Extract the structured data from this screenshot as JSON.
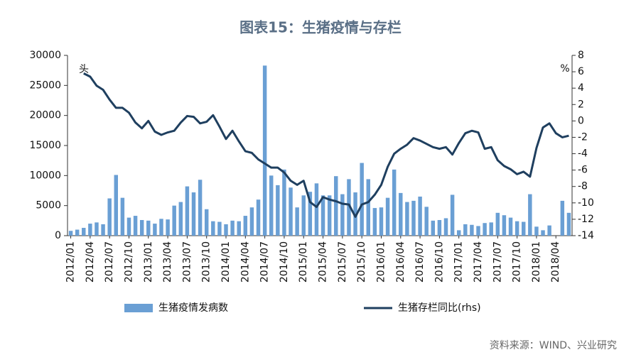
{
  "chart_data": {
    "type": "bar_line",
    "title": "图表15：生猪疫情与存栏",
    "y_unit": "头",
    "y2_unit": "%",
    "source": "资料来源：WIND、兴业研究",
    "categories": [
      "2012/01",
      null,
      null,
      "2012/04",
      null,
      null,
      "2012/07",
      null,
      null,
      "2012/10",
      null,
      null,
      "2013/01",
      null,
      null,
      "2013/04",
      null,
      null,
      "2013/07",
      null,
      null,
      "2013/10",
      null,
      null,
      "2014/01",
      null,
      null,
      "2014/04",
      null,
      null,
      "2014/07",
      null,
      null,
      "2014/10",
      null,
      null,
      "2015/01",
      null,
      null,
      "2015/04",
      null,
      null,
      "2015/07",
      null,
      null,
      "2015/10",
      null,
      null,
      "2016/01",
      null,
      null,
      "2016/04",
      null,
      null,
      "2016/07",
      null,
      null,
      "2016/10",
      null,
      null,
      "2017/01",
      null,
      null,
      "2017/04",
      null,
      null,
      "2017/07",
      null,
      null,
      "2017/10",
      null,
      null,
      "2018/01",
      null,
      null,
      "2018/04",
      null,
      null
    ],
    "series": [
      {
        "name": "生猪疫情发病数",
        "type": "bar",
        "color": "#6a9fd4",
        "values": [
          800,
          1000,
          1300,
          2000,
          2200,
          1900,
          6200,
          10100,
          6300,
          3000,
          3300,
          2600,
          2500,
          2000,
          2800,
          2700,
          5000,
          5600,
          8200,
          7200,
          9300,
          4400,
          2400,
          2300,
          1900,
          2500,
          2400,
          3300,
          4700,
          6000,
          28300,
          10000,
          8400,
          11000,
          8000,
          4700,
          6700,
          7300,
          8700,
          6700,
          6700,
          9900,
          6900,
          9400,
          7200,
          12100,
          9400,
          4600,
          4700,
          6300,
          11000,
          7100,
          5600,
          5800,
          6500,
          4800,
          2500,
          2600,
          2900,
          6800,
          900,
          1900,
          1800,
          1600,
          2100,
          2200,
          3800,
          3400,
          3000,
          2400,
          2300,
          6900,
          1500,
          900,
          1700,
          0,
          5800,
          3800
        ]
      },
      {
        "name": "生猪存栏同比(rhs)",
        "type": "line",
        "axis": "y2",
        "color": "#1f3f5f",
        "values": [
          null,
          null,
          5.8,
          5.4,
          4.3,
          3.8,
          2.6,
          1.6,
          1.6,
          1.0,
          -0.2,
          -0.9,
          0.0,
          -1.3,
          -1.7,
          -1.4,
          -1.2,
          -0.2,
          0.6,
          0.5,
          -0.3,
          -0.1,
          0.7,
          -0.7,
          -2.2,
          -1.2,
          -2.5,
          -3.7,
          -3.9,
          -4.7,
          -5.2,
          -5.7,
          -5.7,
          -6.3,
          -7.3,
          -7.8,
          -7.3,
          -9.9,
          -10.5,
          -9.3,
          -9.6,
          -9.8,
          -10.1,
          -10.2,
          -11.7,
          -10.2,
          -9.9,
          -9.0,
          -7.8,
          -5.6,
          -4.0,
          -3.4,
          -2.9,
          -2.1,
          -2.4,
          -2.8,
          -3.2,
          -3.4,
          -3.2,
          -4.1,
          -2.7,
          -1.5,
          -1.2,
          -1.4,
          -3.4,
          -3.2,
          -4.8,
          -5.5,
          -5.9,
          -6.5,
          -6.2,
          -6.8,
          -3.3,
          -0.8,
          -0.3,
          -1.5,
          -2.0,
          -1.8
        ]
      }
    ],
    "ylim": [
      0,
      30000
    ],
    "yticks": [
      0,
      5000,
      10000,
      15000,
      20000,
      25000,
      30000
    ],
    "y2lim": [
      -14,
      8
    ],
    "y2ticks": [
      -14,
      -12,
      -10,
      -8,
      -6,
      -4,
      -2,
      0,
      2,
      4,
      6,
      8
    ],
    "legend": "bottom"
  }
}
